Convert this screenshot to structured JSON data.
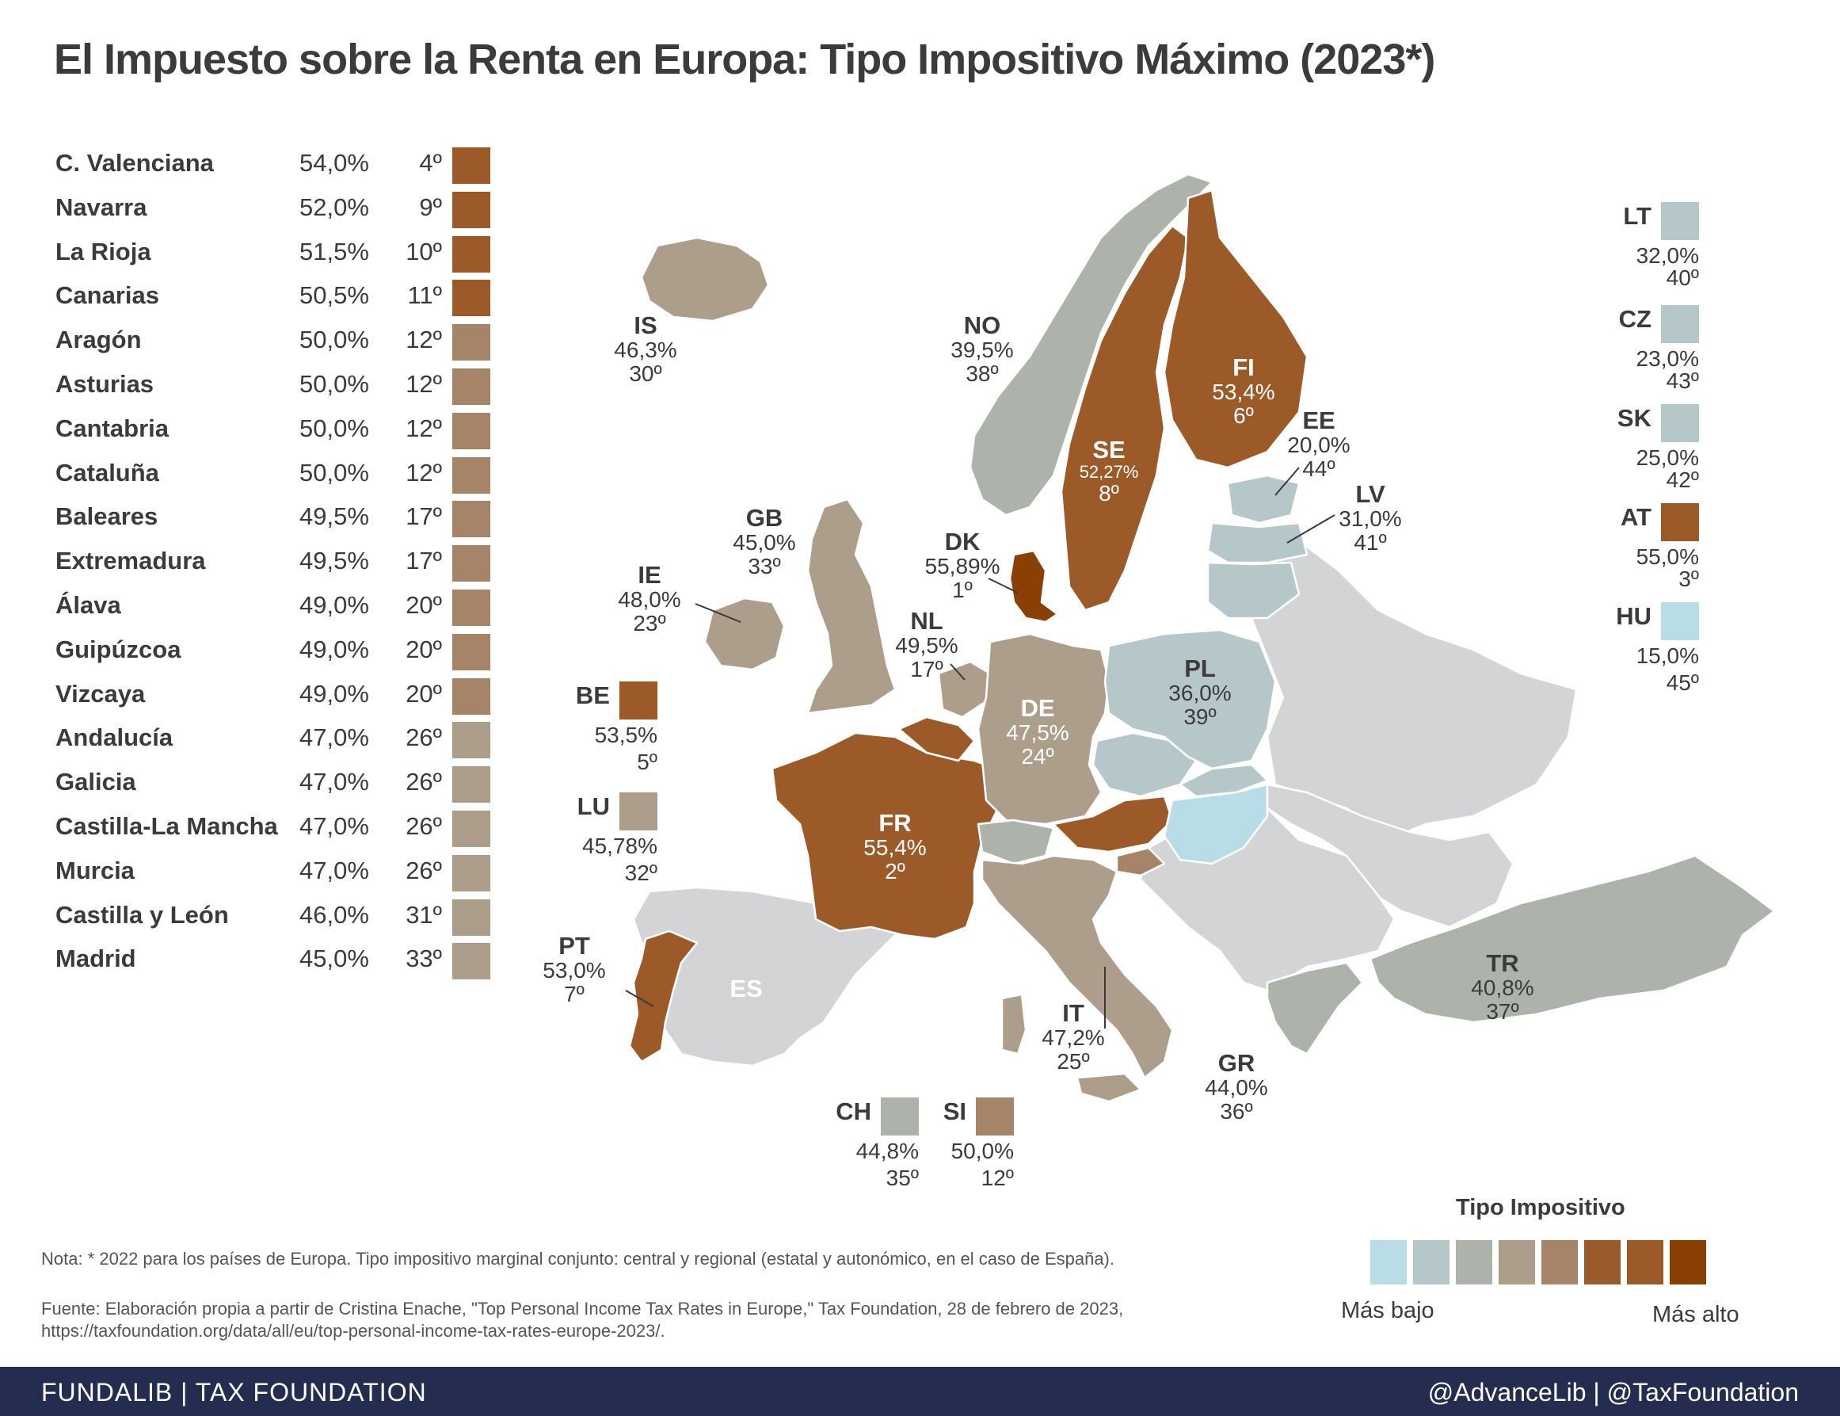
{
  "title": "El Impuesto sobre la Renta en Europa: Tipo Impositivo Máximo (2023*)",
  "colors": {
    "c1": "#b9dde6",
    "c2": "#b5c7c8",
    "c3": "#adb3aa",
    "c4": "#ad9e8b",
    "c5": "#a68468",
    "c6": "#9a5a2b",
    "c7": "#9b5a28",
    "c8": "#8a3f05",
    "nodata": "#d3d4d6"
  },
  "regions": [
    {
      "name": "C. Valenciana",
      "rate": "54,0%",
      "rank": "4º",
      "color": "#9b5a28"
    },
    {
      "name": "Navarra",
      "rate": "52,0%",
      "rank": "9º",
      "color": "#9b5a28"
    },
    {
      "name": "La Rioja",
      "rate": "51,5%",
      "rank": "10º",
      "color": "#9b5a28"
    },
    {
      "name": "Canarias",
      "rate": "50,5%",
      "rank": "11º",
      "color": "#9b5a28"
    },
    {
      "name": "Aragón",
      "rate": "50,0%",
      "rank": "12º",
      "color": "#a68468"
    },
    {
      "name": "Asturias",
      "rate": "50,0%",
      "rank": "12º",
      "color": "#a68468"
    },
    {
      "name": "Cantabria",
      "rate": "50,0%",
      "rank": "12º",
      "color": "#a68468"
    },
    {
      "name": "Cataluña",
      "rate": "50,0%",
      "rank": "12º",
      "color": "#a68468"
    },
    {
      "name": "Baleares",
      "rate": "49,5%",
      "rank": "17º",
      "color": "#a68468"
    },
    {
      "name": "Extremadura",
      "rate": "49,5%",
      "rank": "17º",
      "color": "#a68468"
    },
    {
      "name": "Álava",
      "rate": "49,0%",
      "rank": "20º",
      "color": "#a68468"
    },
    {
      "name": "Guipúzcoa",
      "rate": "49,0%",
      "rank": "20º",
      "color": "#a68468"
    },
    {
      "name": "Vizcaya",
      "rate": "49,0%",
      "rank": "20º",
      "color": "#a68468"
    },
    {
      "name": "Andalucía",
      "rate": "47,0%",
      "rank": "26º",
      "color": "#ad9e8b"
    },
    {
      "name": "Galicia",
      "rate": "47,0%",
      "rank": "26º",
      "color": "#ad9e8b"
    },
    {
      "name": "Castilla-La Mancha",
      "rate": "47,0%",
      "rank": "26º",
      "color": "#ad9e8b"
    },
    {
      "name": "Murcia",
      "rate": "47,0%",
      "rank": "26º",
      "color": "#ad9e8b"
    },
    {
      "name": "Castilla y León",
      "rate": "46,0%",
      "rank": "31º",
      "color": "#ad9e8b"
    },
    {
      "name": "Madrid",
      "rate": "45,0%",
      "rank": "33º",
      "color": "#ad9e8b"
    }
  ],
  "countries": {
    "IS": {
      "code": "IS",
      "rate": "46,3%",
      "rank": "30º"
    },
    "NO": {
      "code": "NO",
      "rate": "39,5%",
      "rank": "38º"
    },
    "FI": {
      "code": "FI",
      "rate": "53,4%",
      "rank": "6º"
    },
    "SE": {
      "code": "SE",
      "rate": "52,27%",
      "rank": "8º"
    },
    "EE": {
      "code": "EE",
      "rate": "20,0%",
      "rank": "44º"
    },
    "LV": {
      "code": "LV",
      "rate": "31,0%",
      "rank": "41º"
    },
    "GB": {
      "code": "GB",
      "rate": "45,0%",
      "rank": "33º"
    },
    "DK": {
      "code": "DK",
      "rate": "55,89%",
      "rank": "1º"
    },
    "IE": {
      "code": "IE",
      "rate": "48,0%",
      "rank": "23º"
    },
    "NL": {
      "code": "NL",
      "rate": "49,5%",
      "rank": "17º"
    },
    "PL": {
      "code": "PL",
      "rate": "36,0%",
      "rank": "39º"
    },
    "DE": {
      "code": "DE",
      "rate": "47,5%",
      "rank": "24º"
    },
    "FR": {
      "code": "FR",
      "rate": "55,4%",
      "rank": "2º"
    },
    "PT": {
      "code": "PT",
      "rate": "53,0%",
      "rank": "7º"
    },
    "ES": {
      "code": "ES"
    },
    "IT": {
      "code": "IT",
      "rate": "47,2%",
      "rank": "25º"
    },
    "GR": {
      "code": "GR",
      "rate": "44,0%",
      "rank": "36º"
    },
    "TR": {
      "code": "TR",
      "rate": "40,8%",
      "rank": "37º"
    },
    "BE": {
      "code": "BE",
      "rate": "53,5%",
      "rank": "5º"
    },
    "LU": {
      "code": "LU",
      "rate": "45,78%",
      "rank": "32º"
    },
    "CH": {
      "code": "CH",
      "rate": "44,8%",
      "rank": "35º"
    },
    "SI": {
      "code": "SI",
      "rate": "50,0%",
      "rank": "12º"
    },
    "LT": {
      "code": "LT",
      "rate": "32,0%",
      "rank": "40º"
    },
    "CZ": {
      "code": "CZ",
      "rate": "23,0%",
      "rank": "43º"
    },
    "SK": {
      "code": "SK",
      "rate": "25,0%",
      "rank": "42º"
    },
    "AT": {
      "code": "AT",
      "rate": "55,0%",
      "rank": "3º"
    },
    "HU": {
      "code": "HU",
      "rate": "15,0%",
      "rank": "45º"
    }
  },
  "legend": {
    "title": "Tipo Impositivo",
    "low": "Más bajo",
    "high": "Más alto",
    "scale": [
      "#b9dde6",
      "#b5c7c8",
      "#adb3aa",
      "#ad9e8b",
      "#a68468",
      "#9a5a2b",
      "#9b5a28",
      "#8a3f05"
    ]
  },
  "note": "Nota: * 2022 para los países de Europa. Tipo impositivo marginal conjunto: central y regional (estatal y autonómico, en el caso de España).",
  "source": "Fuente: Elaboración propia a partir de Cristina Enache, \"Top Personal Income Tax Rates in Europe,\" Tax Foundation,  28 de febrero de 2023, https://taxfoundation.org/data/all/eu/top-personal-income-tax-rates-europe-2023/.",
  "footer": {
    "left": "FUNDALIB | TAX FOUNDATION",
    "right": "@AdvanceLib | @TaxFoundation"
  }
}
